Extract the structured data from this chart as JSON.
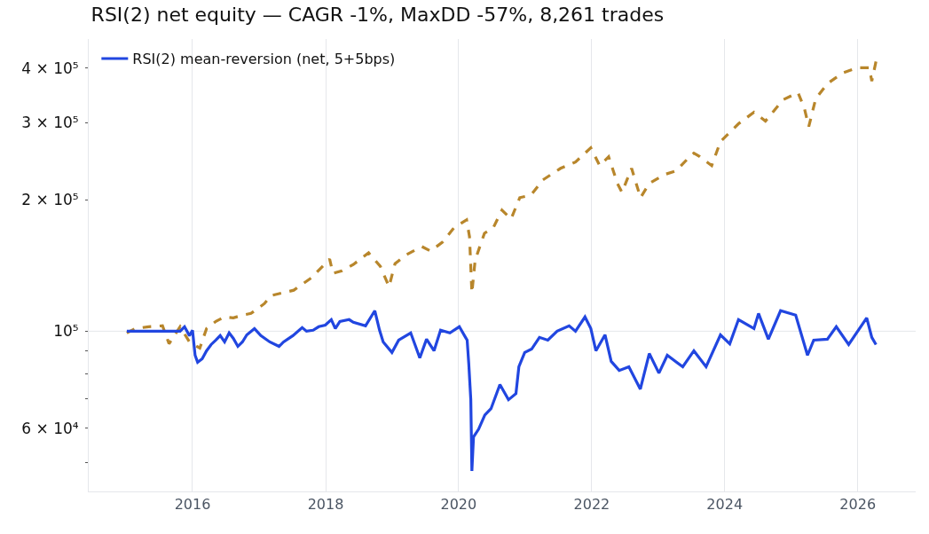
{
  "chart_data": {
    "type": "line",
    "title": "RSI(2) net equity — CAGR -1%, MaxDD -57%, 8,261 trades",
    "xlim": [
      "2014-06-10",
      "2026-11-15"
    ],
    "xticks": [
      {
        "value": "2016-01-01",
        "label": "2016"
      },
      {
        "value": "2018-01-01",
        "label": "2018"
      },
      {
        "value": "2020-01-01",
        "label": "2020"
      },
      {
        "value": "2022-01-01",
        "label": "2022"
      },
      {
        "value": "2024-01-01",
        "label": "2024"
      },
      {
        "value": "2026-01-01",
        "label": "2026"
      }
    ],
    "ylim": [
      43000,
      466000
    ],
    "yticks": [
      {
        "value": 50000,
        "label": null
      },
      {
        "value": 60000,
        "label": "6 × 10⁴"
      },
      {
        "value": 70000,
        "label": null
      },
      {
        "value": 80000,
        "label": null
      },
      {
        "value": 90000,
        "label": null
      },
      {
        "value": 100000,
        "label": "10⁵"
      },
      {
        "value": 200000,
        "label": "2 × 10⁵"
      },
      {
        "value": 300000,
        "label": "3 × 10⁵"
      },
      {
        "value": 400000,
        "label": "4 × 10⁵"
      }
    ],
    "log": "y",
    "grid": "x",
    "legend": "top left",
    "marker": "none",
    "ref_lines": [
      {
        "axis": "y",
        "value": 100000,
        "color": "#e5e7eb",
        "line_style": "solid"
      }
    ],
    "series": [
      {
        "color": "#b8862b",
        "line_style": "dashed",
        "x": [
          "2015-01-05",
          "2015-02-20",
          "2015-05-05",
          "2015-07-20",
          "2015-08-25",
          "2015-10-25",
          "2015-12-15",
          "2016-02-10",
          "2016-03-18",
          "2016-05-08",
          "2016-06-25",
          "2016-08-12",
          "2016-10-01",
          "2016-11-17",
          "2017-01-30",
          "2017-03-06",
          "2017-07-10",
          "2017-10-15",
          "2018-01-23",
          "2018-02-10",
          "2018-04-01",
          "2018-06-02",
          "2018-08-25",
          "2018-10-28",
          "2018-12-15",
          "2019-01-17",
          "2019-03-21",
          "2019-06-13",
          "2019-07-31",
          "2019-10-04",
          "2019-12-06",
          "2020-02-14",
          "2020-03-01",
          "2020-03-14",
          "2020-04-01",
          "2020-05-22",
          "2020-07-09",
          "2020-08-26",
          "2020-10-15",
          "2020-12-02",
          "2021-02-02",
          "2021-04-08",
          "2021-07-14",
          "2021-10-04",
          "2021-12-27",
          "2022-02-14",
          "2022-04-04",
          "2022-05-22",
          "2022-06-16",
          "2022-08-08",
          "2022-09-26",
          "2022-11-13",
          "2023-02-05",
          "2023-04-09",
          "2023-06-18",
          "2023-07-16",
          "2023-08-18",
          "2023-10-22",
          "2023-12-09",
          "2024-03-17",
          "2024-06-10",
          "2024-08-12",
          "2024-11-17",
          "2025-02-07",
          "2025-03-14",
          "2025-04-07",
          "2025-05-15",
          "2025-07-18",
          "2025-10-09",
          "2026-01-01",
          "2026-03-05",
          "2026-03-19",
          "2026-04-11"
        ],
        "values": [
          99100,
          101400,
          102400,
          102900,
          93600,
          102400,
          94500,
          91500,
          101400,
          105300,
          107800,
          107300,
          108800,
          109800,
          115700,
          120600,
          124100,
          132500,
          146200,
          135600,
          137500,
          142100,
          151100,
          140800,
          126400,
          142800,
          149700,
          156200,
          152500,
          159800,
          172300,
          179800,
          164400,
          122300,
          145500,
          167500,
          172300,
          189200,
          180600,
          202100,
          204900,
          221900,
          235800,
          243800,
          262800,
          239200,
          250700,
          217800,
          207800,
          235800,
          202100,
          217800,
          228300,
          232600,
          249500,
          255500,
          250700,
          239200,
          271600,
          298200,
          316900,
          302500,
          338400,
          351400,
          323100,
          294000,
          340100,
          368400,
          389600,
          400700,
          400700,
          373500,
          414100
        ]
      },
      {
        "name": "RSI(2) mean-reversion (net, 5+5bps)",
        "color": "#2146e0",
        "line_style": "solid",
        "x": [
          "2015-01-05",
          "2015-10-25",
          "2015-11-18",
          "2015-12-15",
          "2016-01-01",
          "2016-01-15",
          "2016-01-29",
          "2016-02-23",
          "2016-03-18",
          "2016-04-12",
          "2016-05-08",
          "2016-06-01",
          "2016-06-25",
          "2016-07-20",
          "2016-08-12",
          "2016-09-06",
          "2016-10-01",
          "2016-10-25",
          "2016-12-06",
          "2017-01-10",
          "2017-02-28",
          "2017-04-20",
          "2017-05-15",
          "2017-07-05",
          "2017-08-25",
          "2017-09-18",
          "2017-10-24",
          "2017-11-24",
          "2017-12-30",
          "2018-02-01",
          "2018-02-23",
          "2018-03-20",
          "2018-05-10",
          "2018-06-02",
          "2018-08-08",
          "2018-09-28",
          "2018-10-24",
          "2018-11-13",
          "2018-12-31",
          "2019-02-06",
          "2019-04-13",
          "2019-06-02",
          "2019-07-09",
          "2019-08-19",
          "2019-09-24",
          "2019-11-14",
          "2020-01-05",
          "2020-02-08",
          "2020-02-17",
          "2020-02-26",
          "2020-03-08",
          "2020-03-14",
          "2020-03-23",
          "2020-04-20",
          "2020-05-24",
          "2020-06-27",
          "2020-08-15",
          "2020-10-01",
          "2020-11-11",
          "2020-11-27",
          "2020-12-29",
          "2021-02-05",
          "2021-03-20",
          "2021-05-05",
          "2021-06-25",
          "2021-08-30",
          "2021-10-04",
          "2021-11-25",
          "2021-12-27",
          "2022-01-24",
          "2022-03-15",
          "2022-04-18",
          "2022-06-01",
          "2022-07-24",
          "2022-09-25",
          "2022-11-13",
          "2023-01-05",
          "2023-02-20",
          "2023-05-16",
          "2023-07-16",
          "2023-09-21",
          "2023-12-09",
          "2024-01-29",
          "2024-03-17",
          "2024-06-10",
          "2024-07-05",
          "2024-08-28",
          "2024-11-03",
          "2025-01-25",
          "2025-03-31",
          "2025-05-04",
          "2025-07-18",
          "2025-09-05",
          "2025-11-12",
          "2026-02-19",
          "2026-03-19",
          "2026-04-11"
        ],
        "values": [
          100000,
          100000,
          102400,
          97700,
          100500,
          88100,
          84900,
          86500,
          90200,
          93200,
          95400,
          97700,
          94500,
          99100,
          96300,
          92300,
          94500,
          98100,
          101400,
          97700,
          94500,
          92300,
          94500,
          97700,
          101900,
          100000,
          100500,
          102400,
          103300,
          106300,
          101400,
          105300,
          106300,
          104800,
          102900,
          111400,
          100500,
          94500,
          89400,
          95400,
          99100,
          86900,
          95900,
          90200,
          100500,
          99100,
          102400,
          96800,
          95400,
          84100,
          69700,
          47900,
          57300,
          59700,
          64300,
          66500,
          75500,
          69700,
          72000,
          82900,
          89400,
          91000,
          96800,
          95400,
          100000,
          102900,
          100000,
          107800,
          101400,
          90200,
          98100,
          85300,
          81300,
          82900,
          73700,
          88900,
          80200,
          88100,
          82900,
          90200,
          82900,
          98100,
          93600,
          106300,
          101400,
          109800,
          95900,
          111400,
          108800,
          88100,
          95400,
          95900,
          102400,
          93200,
          107300,
          96800,
          93200
        ]
      }
    ]
  }
}
